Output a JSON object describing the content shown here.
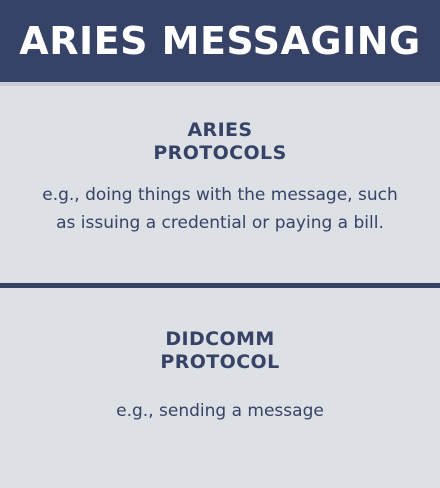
{
  "header": {
    "title": "ARIES MESSAGING"
  },
  "sections": [
    {
      "heading_lines": [
        "ARIES",
        "PROTOCOLS"
      ],
      "description_lines": [
        "e.g., doing things with the message, such",
        "as issuing a credential or paying a bill."
      ]
    },
    {
      "heading_lines": [
        "DIDCOMM",
        "PROTOCOL"
      ],
      "description_lines": [
        "e.g., sending a message"
      ]
    }
  ],
  "colors": {
    "header_background": "#364266",
    "panel_background": "#dde1e5",
    "text": "#364266",
    "divider": "#364266"
  }
}
